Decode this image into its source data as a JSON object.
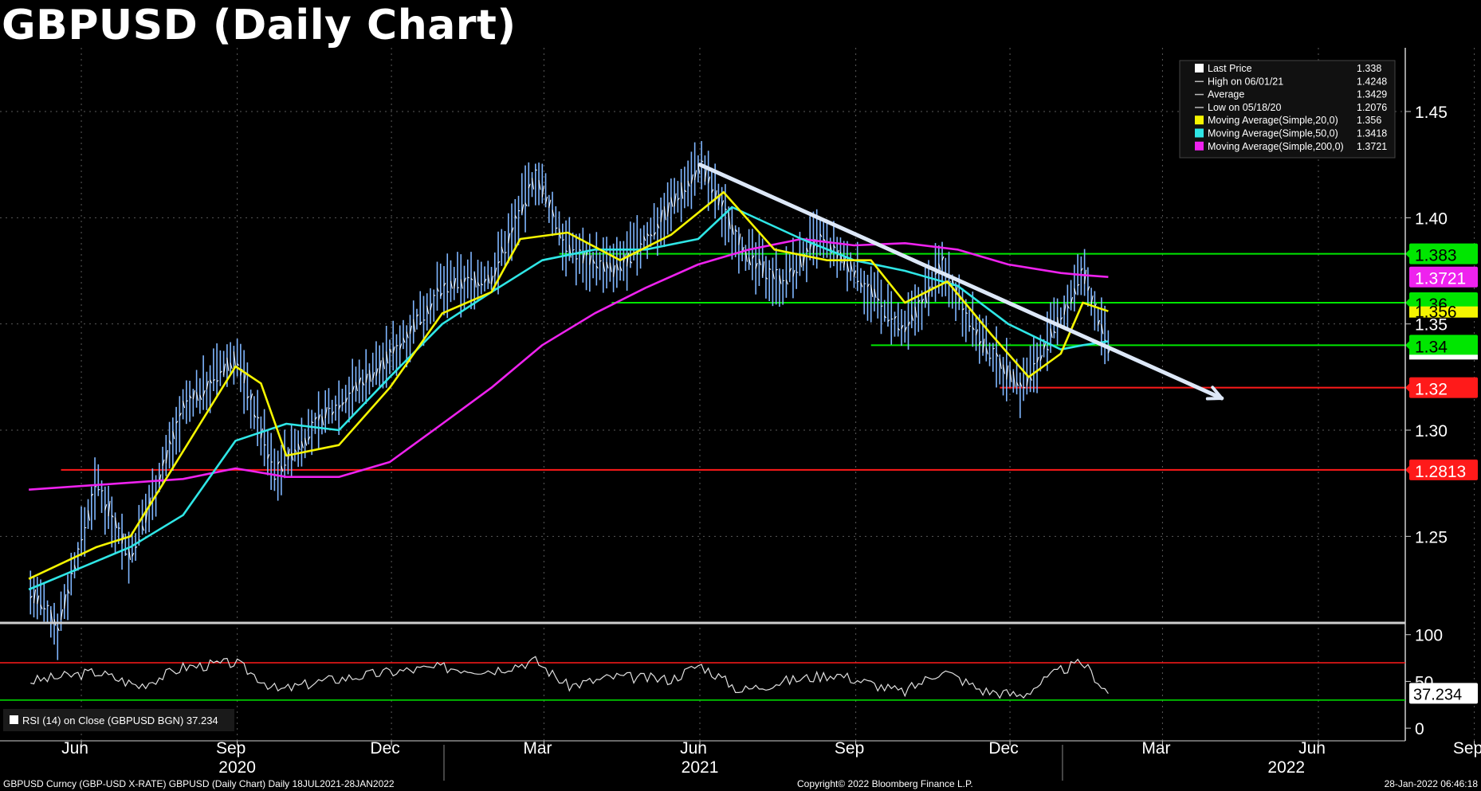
{
  "title": "GBPUSD (Daily Chart)",
  "colors": {
    "background": "#000000",
    "grid": "#5a5a5a",
    "candle": "#7fb6ff",
    "ma20": "#f5f500",
    "ma50": "#2fe6e6",
    "ma200": "#ee22ee",
    "support": "#00e600",
    "resistance_red": "#ff1a1a",
    "trendline": "#dde8f8",
    "rsi": "#e0e0e0"
  },
  "legend": {
    "items": [
      {
        "label": "Last Price",
        "value": "1.338",
        "color": "#ffffff",
        "icon": "white-square-icon"
      },
      {
        "label": "High on 06/01/21",
        "value": "1.4248",
        "color": "#bbbbbb",
        "icon": "high-marker-icon"
      },
      {
        "label": "Average",
        "value": "1.3429",
        "color": "#bbbbbb",
        "icon": "average-line-icon"
      },
      {
        "label": "Low on 05/18/20",
        "value": "1.2076",
        "color": "#bbbbbb",
        "icon": "low-marker-icon"
      },
      {
        "label": "Moving Average(Simple,20,0)",
        "value": "1.356",
        "color": "#f5f500",
        "icon": "yellow-square-icon"
      },
      {
        "label": "Moving Average(Simple,50,0)",
        "value": "1.3418",
        "color": "#2fe6e6",
        "icon": "cyan-square-icon"
      },
      {
        "label": "Moving Average(Simple,200,0)",
        "value": "1.3721",
        "color": "#ee22ee",
        "icon": "magenta-square-icon"
      }
    ]
  },
  "chart_data": {
    "type": "line",
    "title": "GBPUSD (Daily Chart)",
    "price_axis": {
      "ylim": [
        1.21,
        1.48
      ],
      "ticks": [
        "1.25",
        "1.30",
        "1.35",
        "1.40",
        "1.45"
      ]
    },
    "rsi_axis": {
      "ylim": [
        -5,
        110
      ],
      "ticks": [
        "100",
        "50",
        "0"
      ]
    },
    "x_ticks": [
      "Jun",
      "Sep",
      "Dec",
      "Mar",
      "Jun",
      "Sep",
      "Dec",
      "Mar",
      "Jun",
      "Sep"
    ],
    "year_labels": [
      "2020",
      "2021",
      "2022"
    ],
    "grid": true,
    "series": [
      {
        "key": "price",
        "x": [
          "2020-05-01",
          "2020-05-18",
          "2020-06-10",
          "2020-06-30",
          "2020-07-31",
          "2020-08-31",
          "2020-09-23",
          "2020-10-20",
          "2020-11-30",
          "2020-12-31",
          "2021-01-29",
          "2021-02-24",
          "2021-03-15",
          "2021-04-12",
          "2021-04-30",
          "2021-06-01",
          "2021-06-30",
          "2021-07-20",
          "2021-08-10",
          "2021-08-31",
          "2021-09-29",
          "2021-10-22",
          "2021-11-15",
          "2021-12-08",
          "2021-12-31",
          "2022-01-13",
          "2022-01-28"
        ],
        "values": [
          1.225,
          1.2076,
          1.275,
          1.24,
          1.31,
          1.335,
          1.28,
          1.305,
          1.335,
          1.367,
          1.372,
          1.42,
          1.385,
          1.375,
          1.39,
          1.4248,
          1.38,
          1.37,
          1.39,
          1.375,
          1.345,
          1.378,
          1.34,
          1.32,
          1.353,
          1.374,
          1.338
        ]
      },
      {
        "name": "Moving Average(Simple,20,0)",
        "key": "ma20",
        "x": [
          "2020-05-01",
          "2020-06-10",
          "2020-06-30",
          "2020-07-31",
          "2020-08-31",
          "2020-09-15",
          "2020-09-30",
          "2020-10-31",
          "2020-11-30",
          "2020-12-31",
          "2021-01-29",
          "2021-02-15",
          "2021-03-15",
          "2021-04-15",
          "2021-05-15",
          "2021-06-15",
          "2021-07-15",
          "2021-08-15",
          "2021-09-10",
          "2021-09-30",
          "2021-10-25",
          "2021-11-20",
          "2021-12-12",
          "2021-12-31",
          "2022-01-13",
          "2022-01-28"
        ],
        "values": [
          1.23,
          1.245,
          1.25,
          1.29,
          1.33,
          1.322,
          1.288,
          1.293,
          1.32,
          1.355,
          1.365,
          1.39,
          1.393,
          1.38,
          1.392,
          1.412,
          1.385,
          1.38,
          1.38,
          1.36,
          1.37,
          1.345,
          1.325,
          1.336,
          1.36,
          1.356
        ]
      },
      {
        "name": "Moving Average(Simple,50,0)",
        "key": "ma50",
        "x": [
          "2020-05-01",
          "2020-06-30",
          "2020-07-31",
          "2020-08-31",
          "2020-09-30",
          "2020-10-31",
          "2020-11-30",
          "2020-12-31",
          "2021-01-29",
          "2021-02-28",
          "2021-03-31",
          "2021-04-30",
          "2021-05-31",
          "2021-06-20",
          "2021-07-31",
          "2021-08-31",
          "2021-09-30",
          "2021-10-31",
          "2021-11-30",
          "2021-12-31",
          "2022-01-13",
          "2022-01-28"
        ],
        "values": [
          1.225,
          1.245,
          1.26,
          1.295,
          1.303,
          1.3,
          1.325,
          1.35,
          1.365,
          1.38,
          1.385,
          1.385,
          1.39,
          1.405,
          1.39,
          1.38,
          1.375,
          1.368,
          1.35,
          1.338,
          1.34,
          1.3418
        ]
      },
      {
        "name": "Moving Average(Simple,200,0)",
        "key": "ma200",
        "x": [
          "2020-05-01",
          "2020-07-31",
          "2020-08-31",
          "2020-09-30",
          "2020-10-31",
          "2020-11-30",
          "2020-12-31",
          "2021-01-29",
          "2021-02-28",
          "2021-03-31",
          "2021-04-30",
          "2021-05-31",
          "2021-06-30",
          "2021-07-31",
          "2021-08-31",
          "2021-09-30",
          "2021-10-31",
          "2021-11-30",
          "2021-12-31",
          "2022-01-13",
          "2022-01-28"
        ],
        "values": [
          1.272,
          1.277,
          1.282,
          1.278,
          1.278,
          1.285,
          1.303,
          1.32,
          1.34,
          1.355,
          1.367,
          1.378,
          1.385,
          1.39,
          1.387,
          1.388,
          1.385,
          1.378,
          1.374,
          1.373,
          1.3721
        ]
      },
      {
        "name": "RSI (14)",
        "key": "rsi",
        "x": [
          "2020-05-01",
          "2020-06-10",
          "2020-07-05",
          "2020-07-31",
          "2020-08-31",
          "2020-09-25",
          "2020-10-20",
          "2020-11-30",
          "2020-12-31",
          "2021-01-29",
          "2021-02-24",
          "2021-03-15",
          "2021-04-12",
          "2021-05-15",
          "2021-06-01",
          "2021-06-25",
          "2021-07-20",
          "2021-08-20",
          "2021-09-29",
          "2021-10-22",
          "2021-11-15",
          "2021-12-08",
          "2021-12-31",
          "2022-01-13",
          "2022-01-28"
        ],
        "values": [
          50,
          60,
          45,
          65,
          70,
          40,
          50,
          60,
          65,
          62,
          72,
          45,
          55,
          52,
          68,
          40,
          50,
          58,
          38,
          62,
          40,
          35,
          62,
          70,
          37.234
        ]
      }
    ],
    "horizontal_levels": [
      {
        "label": "1.383",
        "value": 1.383,
        "from": "2021-03-10",
        "color": "#00e600"
      },
      {
        "label": "1.36",
        "value": 1.36,
        "from": "2021-04-10",
        "color": "#00e600"
      },
      {
        "label": "1.34",
        "value": 1.34,
        "from": "2021-09-10",
        "color": "#00e600"
      },
      {
        "label": "1.32",
        "value": 1.32,
        "from": "2021-11-25",
        "color": "#ff1a1a"
      },
      {
        "label": "1.2813",
        "value": 1.2813,
        "from": "2020-05-20",
        "color": "#ff1a1a"
      }
    ],
    "ma200_label": "1.3721",
    "price_partial_label": "1.356",
    "trendline": {
      "start": [
        "2021-06-01",
        1.425
      ],
      "end": [
        "2022-04-05",
        1.315
      ]
    },
    "rsi_bands": {
      "upper": 70,
      "lower": 30
    },
    "rsi_value_label": "37.234",
    "rsi_legend": "RSI (14)   on Close (GBPUSD BGN) 37.234"
  },
  "footer": {
    "left": "GBPUSD Curncy (GBP-USD X-RATE) GBPUSD (Daily Chart)  Daily 18JUL2021-28JAN2022",
    "center": "Copyright© 2022 Bloomberg Finance L.P.",
    "right": "28-Jan-2022 06:46:18"
  }
}
